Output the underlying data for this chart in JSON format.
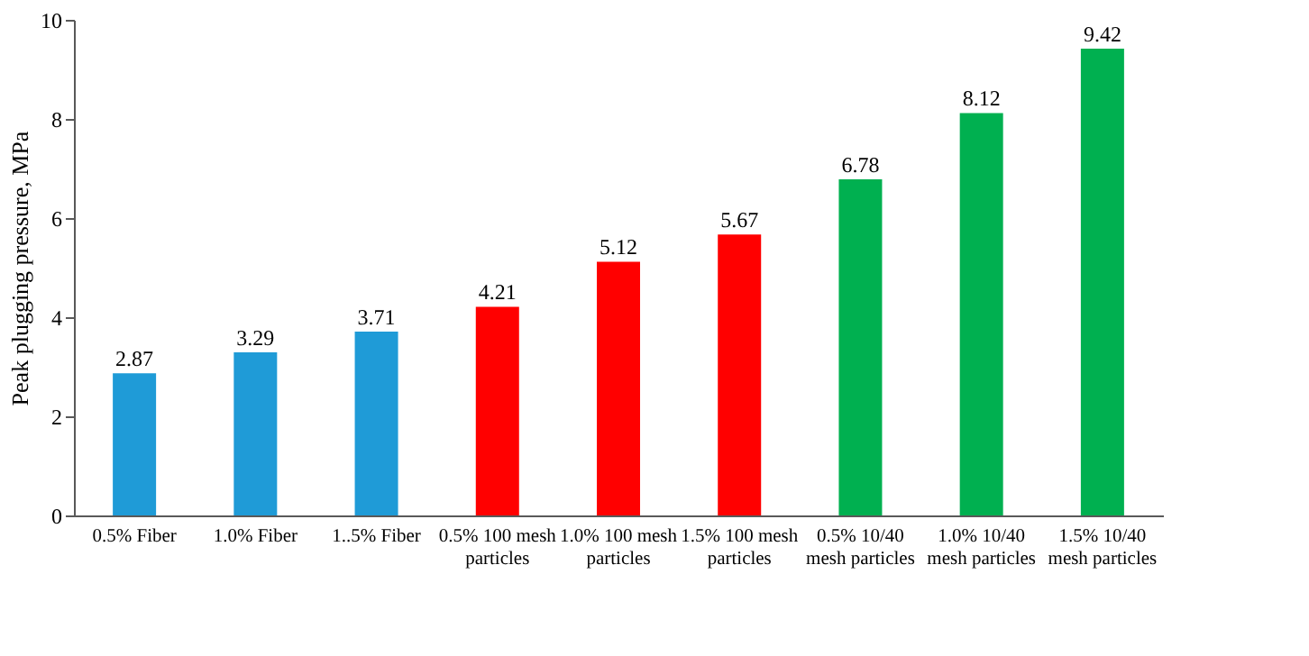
{
  "chart_data": {
    "type": "bar",
    "ylabel": "Peak plugging pressure, MPa",
    "categories": [
      "0.5% Fiber",
      "1.0% Fiber",
      "1..5% Fiber",
      "0.5% 100 mesh particles",
      "1.0% 100 mesh particles",
      "1.5% 100 mesh particles",
      "0.5% 10/40 mesh particles",
      "1.0% 10/40 mesh particles",
      "1.5% 10/40 mesh particles"
    ],
    "values": [
      2.87,
      3.29,
      3.71,
      4.21,
      5.12,
      5.67,
      6.78,
      8.12,
      9.42
    ],
    "colors": [
      "#1f9bd7",
      "#1f9bd7",
      "#1f9bd7",
      "#ff0000",
      "#ff0000",
      "#ff0000",
      "#00b050",
      "#00b050",
      "#00b050"
    ],
    "ylim": [
      0,
      10
    ],
    "yticks": [
      0,
      2,
      4,
      6,
      8,
      10
    ],
    "data_labels": true,
    "grid": false
  }
}
